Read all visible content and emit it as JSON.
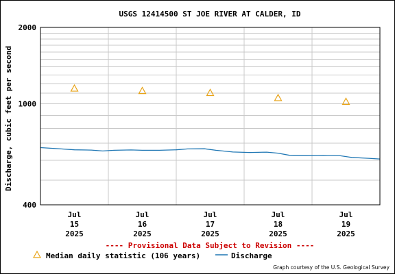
{
  "chart_data": {
    "type": "line",
    "title": "USGS 12414500 ST JOE RIVER AT CALDER, ID",
    "ylabel": "Discharge, cubic feet per second",
    "xlabel": "",
    "yscale": "log",
    "ylim": [
      400,
      2000
    ],
    "yticks": [
      {
        "value": 400,
        "label": "400"
      },
      {
        "value": 1000,
        "label": "1000"
      },
      {
        "value": 2000,
        "label": "2000"
      }
    ],
    "xlim": [
      "2025-07-14T12:00",
      "2025-07-19T12:00"
    ],
    "xticks": [
      {
        "date": "2025-07-15",
        "lines": [
          "Jul",
          "15",
          "2025"
        ]
      },
      {
        "date": "2025-07-16",
        "lines": [
          "Jul",
          "16",
          "2025"
        ]
      },
      {
        "date": "2025-07-17",
        "lines": [
          "Jul",
          "17",
          "2025"
        ]
      },
      {
        "date": "2025-07-18",
        "lines": [
          "Jul",
          "18",
          "2025"
        ]
      },
      {
        "date": "2025-07-19",
        "lines": [
          "Jul",
          "19",
          "2025"
        ]
      }
    ],
    "grid": true,
    "series": [
      {
        "name": "Discharge",
        "kind": "line",
        "color": "#1f77b4",
        "points": [
          [
            "2025-07-14T12:00",
            672
          ],
          [
            "2025-07-14T18:00",
            666
          ],
          [
            "2025-07-15T00:00",
            659
          ],
          [
            "2025-07-15T06:00",
            657
          ],
          [
            "2025-07-15T10:00",
            652
          ],
          [
            "2025-07-15T14:00",
            656
          ],
          [
            "2025-07-15T20:00",
            658
          ],
          [
            "2025-07-16T00:00",
            656
          ],
          [
            "2025-07-16T06:00",
            656
          ],
          [
            "2025-07-16T12:00",
            659
          ],
          [
            "2025-07-16T16:00",
            664
          ],
          [
            "2025-07-16T22:00",
            665
          ],
          [
            "2025-07-17T02:00",
            656
          ],
          [
            "2025-07-17T08:00",
            646
          ],
          [
            "2025-07-17T14:00",
            643
          ],
          [
            "2025-07-17T20:00",
            645
          ],
          [
            "2025-07-18T00:00",
            639
          ],
          [
            "2025-07-18T04:00",
            627
          ],
          [
            "2025-07-18T10:00",
            625
          ],
          [
            "2025-07-18T16:00",
            626
          ],
          [
            "2025-07-18T22:00",
            624
          ],
          [
            "2025-07-19T02:00",
            615
          ],
          [
            "2025-07-19T08:00",
            610
          ],
          [
            "2025-07-19T12:00",
            606
          ]
        ]
      },
      {
        "name": "Median daily statistic (106 years)",
        "kind": "marker",
        "marker": "triangle",
        "color": "#e8a317",
        "points": [
          [
            "2025-07-15T00:00",
            1150
          ],
          [
            "2025-07-16T00:00",
            1125
          ],
          [
            "2025-07-17T00:00",
            1105
          ],
          [
            "2025-07-18T00:00",
            1055
          ],
          [
            "2025-07-19T00:00",
            1020
          ]
        ]
      }
    ]
  },
  "provisional_note": "---- Provisional Data Subject to Revision ----",
  "legend": {
    "median_label": "Median daily statistic (106 years)",
    "discharge_label": "Discharge"
  },
  "credit": "Graph courtesy of the U.S. Geological Survey",
  "colors": {
    "discharge": "#1f77b4",
    "median": "#e8a317",
    "provisional": "#cc0000",
    "grid": "#c8c8c8"
  }
}
